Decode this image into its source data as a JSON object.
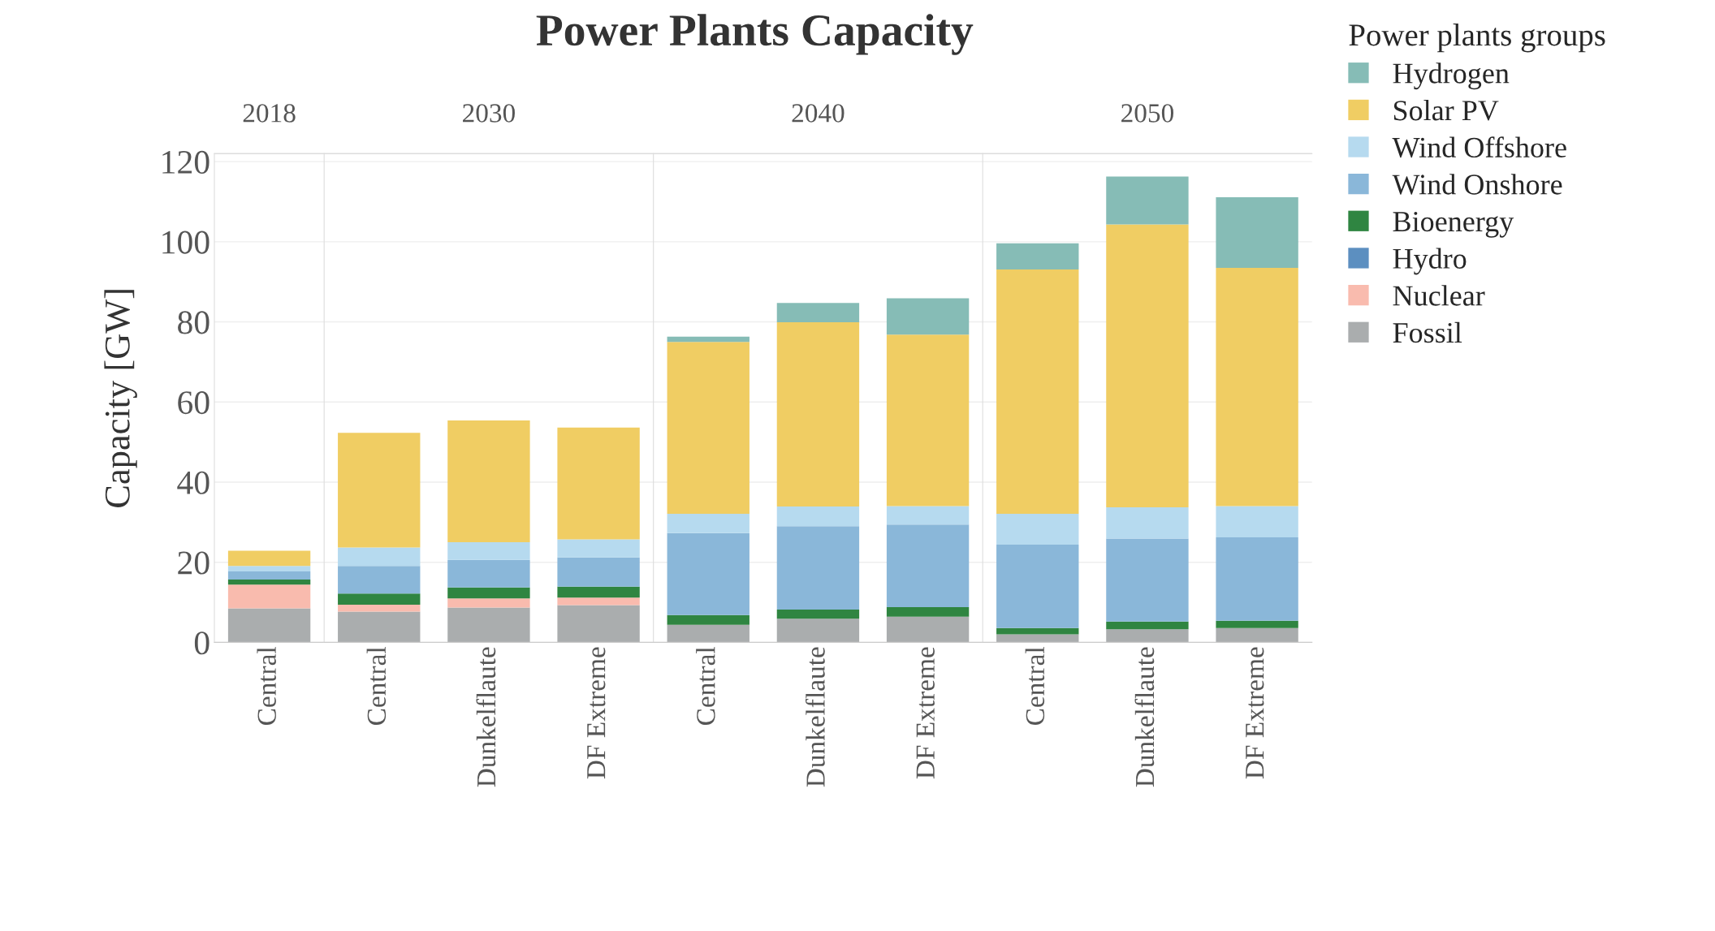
{
  "chart_data": [
    {
      "type": "bar",
      "subtitle": "2018",
      "ylabel": "Capacity [GW]",
      "stacked": true,
      "grid": "y",
      "ylim": [
        0,
        122
      ],
      "yticks": [
        0,
        20,
        40,
        60,
        80,
        100,
        120
      ],
      "categories": [
        "Central"
      ],
      "series": [
        {
          "color": "#aaadae",
          "values": [
            8.5
          ]
        },
        {
          "color": "#f9bbae",
          "values": [
            5.9
          ]
        },
        {
          "color": "#5c8fc0",
          "values": [
            0
          ]
        },
        {
          "color": "#2f8541",
          "values": [
            1.3
          ]
        },
        {
          "color": "#8ab7d9",
          "values": [
            2.0
          ]
        },
        {
          "color": "#b6daef",
          "values": [
            1.4
          ]
        },
        {
          "color": "#f0cd63",
          "values": [
            3.8
          ]
        },
        {
          "color": "#86bcb6",
          "values": [
            0
          ]
        }
      ]
    },
    {
      "type": "bar",
      "subtitle": "2030",
      "stacked": true,
      "grid": "y",
      "ylim": [
        0,
        122
      ],
      "yticks": [
        0,
        20,
        40,
        60,
        80,
        100,
        120
      ],
      "tick_labels": "x",
      "categories": [
        "Central",
        "Dunkelflaute",
        "DF Extreme"
      ],
      "series": [
        {
          "color": "#aaadae",
          "values": [
            7.7,
            8.7,
            9.3
          ]
        },
        {
          "color": "#f9bbae",
          "values": [
            1.7,
            2.3,
            1.9
          ]
        },
        {
          "color": "#5c8fc0",
          "values": [
            0,
            0,
            0
          ]
        },
        {
          "color": "#2f8541",
          "values": [
            2.8,
            2.7,
            2.7
          ]
        },
        {
          "color": "#8ab7d9",
          "values": [
            6.9,
            6.9,
            7.3
          ]
        },
        {
          "color": "#b6daef",
          "values": [
            4.6,
            4.4,
            4.5
          ]
        },
        {
          "color": "#f0cd63",
          "values": [
            28.6,
            30.4,
            27.9
          ]
        },
        {
          "color": "#86bcb6",
          "values": [
            0,
            0,
            0
          ]
        }
      ]
    },
    {
      "type": "bar",
      "title": "Power Plants Capacity",
      "subtitle": "2040",
      "stacked": true,
      "grid": "y",
      "ylim": [
        0,
        122
      ],
      "yticks": [
        0,
        20,
        40,
        60,
        80,
        100,
        120
      ],
      "tick_labels": "x",
      "categories": [
        "Central",
        "Dunkelflaute",
        "DF Extreme"
      ],
      "series": [
        {
          "color": "#aaadae",
          "values": [
            4.4,
            5.9,
            6.4
          ]
        },
        {
          "color": "#f9bbae",
          "values": [
            0,
            0,
            0
          ]
        },
        {
          "color": "#5c8fc0",
          "values": [
            0,
            0,
            0
          ]
        },
        {
          "color": "#2f8541",
          "values": [
            2.4,
            2.3,
            2.4
          ]
        },
        {
          "color": "#8ab7d9",
          "values": [
            20.5,
            20.8,
            20.6
          ]
        },
        {
          "color": "#b6daef",
          "values": [
            4.8,
            4.9,
            4.6
          ]
        },
        {
          "color": "#f0cd63",
          "values": [
            42.9,
            46.0,
            42.8
          ]
        },
        {
          "color": "#86bcb6",
          "values": [
            1.3,
            4.8,
            9.1
          ]
        }
      ]
    },
    {
      "type": "bar",
      "subtitle": "2050",
      "legend_title": "Power plants groups",
      "legend": "right",
      "stacked": true,
      "grid": "y",
      "ylim": [
        0,
        122
      ],
      "yticks": [
        0,
        20,
        40,
        60,
        80,
        100,
        120
      ],
      "tick_labels": "x",
      "categories": [
        "Central",
        "Dunkelflaute",
        "DF Extreme"
      ],
      "series": [
        {
          "name": "Fossil",
          "color": "#aaadae",
          "values": [
            2.0,
            3.3,
            3.6
          ]
        },
        {
          "name": "Nuclear",
          "color": "#f9bbae",
          "values": [
            0,
            0,
            0
          ]
        },
        {
          "name": "Hydro",
          "color": "#5c8fc0",
          "values": [
            0,
            0,
            0
          ]
        },
        {
          "name": "Bioenergy",
          "color": "#2f8541",
          "values": [
            1.6,
            1.9,
            1.8
          ]
        },
        {
          "name": "Wind Onshore",
          "color": "#8ab7d9",
          "values": [
            20.8,
            20.7,
            20.8
          ]
        },
        {
          "name": "Wind Offshore",
          "color": "#b6daef",
          "values": [
            7.7,
            7.8,
            7.8
          ]
        },
        {
          "name": "Solar PV",
          "color": "#f0cd63",
          "values": [
            61.0,
            70.6,
            59.5
          ]
        },
        {
          "name": "Hydrogen",
          "color": "#86bcb6",
          "values": [
            6.5,
            12.0,
            17.6
          ]
        }
      ]
    }
  ]
}
